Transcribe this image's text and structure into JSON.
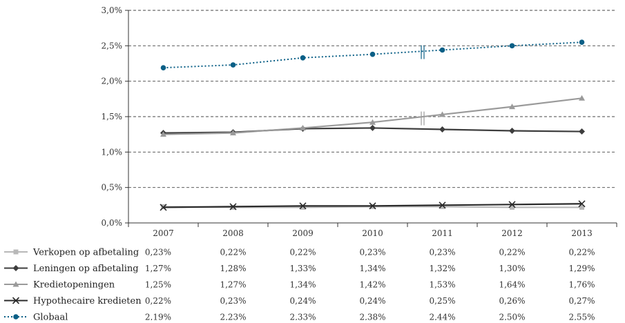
{
  "chart_data": {
    "type": "line",
    "title": "",
    "xlabel": "",
    "ylabel": "",
    "categories": [
      "2007",
      "2008",
      "2009",
      "2010",
      "2011",
      "2012",
      "2013"
    ],
    "ylim": [
      0,
      3.0
    ],
    "yticks": [
      "0,0%",
      "0,5%",
      "1,0%",
      "1,5%",
      "2,0%",
      "2,5%",
      "3,0%"
    ],
    "grid": true,
    "legend_position": "bottom-left (data table)",
    "break_marker_between": [
      "2010",
      "2011"
    ],
    "series": [
      {
        "name": "Verkopen op afbetaling",
        "values": [
          0.23,
          0.22,
          0.22,
          0.23,
          0.23,
          0.22,
          0.22
        ],
        "labels": [
          "0,23%",
          "0,22%",
          "0,22%",
          "0,23%",
          "0,23%",
          "0,22%",
          "0,22%"
        ],
        "color": "#b8b8b8",
        "marker": "square",
        "style": "solid"
      },
      {
        "name": "Leningen op afbetaling",
        "values": [
          1.27,
          1.28,
          1.33,
          1.34,
          1.32,
          1.3,
          1.29
        ],
        "labels": [
          "1,27%",
          "1,28%",
          "1,33%",
          "1,34%",
          "1,32%",
          "1,30%",
          "1,29%"
        ],
        "color": "#3d3d3d",
        "marker": "diamond",
        "style": "solid"
      },
      {
        "name": "Kredietopeningen",
        "values": [
          1.25,
          1.27,
          1.34,
          1.42,
          1.53,
          1.64,
          1.76
        ],
        "labels": [
          "1,25%",
          "1,27%",
          "1,34%",
          "1,42%",
          "1,53%",
          "1,64%",
          "1,76%"
        ],
        "color": "#9a9a9a",
        "marker": "triangle",
        "style": "solid"
      },
      {
        "name": "Hypothecaire kredieten",
        "values": [
          0.22,
          0.23,
          0.24,
          0.24,
          0.25,
          0.26,
          0.27
        ],
        "labels": [
          "0,22%",
          "0,23%",
          "0,24%",
          "0,24%",
          "0,25%",
          "0,26%",
          "0,27%"
        ],
        "color": "#2b2b2b",
        "marker": "x",
        "style": "solid"
      },
      {
        "name": "Globaal",
        "values": [
          2.19,
          2.23,
          2.33,
          2.38,
          2.44,
          2.5,
          2.55
        ],
        "labels": [
          "2,19%",
          "2,23%",
          "2,33%",
          "2,38%",
          "2,44%",
          "2,50%",
          "2,55%"
        ],
        "color": "#0a5f86",
        "marker": "circle",
        "style": "dotted"
      }
    ]
  }
}
